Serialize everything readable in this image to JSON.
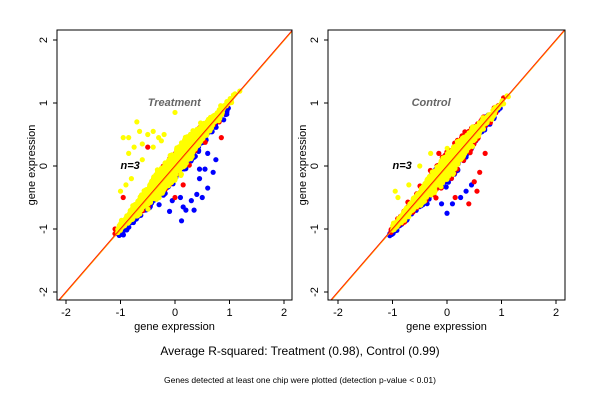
{
  "chart_data": [
    {
      "type": "scatter",
      "title": "Treatment",
      "annotation": "n=3",
      "xlabel": "gene expression",
      "ylabel": "gene expression",
      "xlim": [
        -2.15,
        2.15
      ],
      "ylim": [
        -2.15,
        2.15
      ],
      "xticks": [
        "-2",
        "-1",
        "0",
        "1",
        "2"
      ],
      "yticks": [
        "-2",
        "-1",
        "0",
        "1",
        "2"
      ],
      "reference_line": "y = x",
      "series": [
        {
          "name": "blue",
          "color": "#0000ff",
          "cloud": {
            "center": -0.05,
            "sd": 0.42,
            "min": -1.05,
            "max": 1.15,
            "offset": -0.08,
            "spread": 0.1,
            "n": 600
          },
          "outliers": [
            [
              0.45,
              -0.05
            ],
            [
              0.55,
              -0.05
            ],
            [
              0.45,
              -0.2
            ],
            [
              0.6,
              -0.35
            ],
            [
              0.1,
              -0.5
            ],
            [
              0.3,
              -0.55
            ],
            [
              0.4,
              -0.45
            ],
            [
              -0.05,
              -0.55
            ],
            [
              0.15,
              -0.65
            ],
            [
              0.2,
              -0.7
            ],
            [
              0.35,
              -0.7
            ],
            [
              0.5,
              -0.5
            ],
            [
              -0.1,
              -0.72
            ],
            [
              0.12,
              -0.87
            ],
            [
              0.7,
              -0.1
            ],
            [
              0.75,
              0.1
            ],
            [
              0.6,
              0.2
            ]
          ]
        },
        {
          "name": "red",
          "color": "#ff0000",
          "cloud": {
            "center": -0.1,
            "sd": 0.45,
            "min": -1.15,
            "max": 1.1,
            "offset": 0.0,
            "spread": 0.14,
            "n": 250
          },
          "outliers": [
            [
              -1.1,
              -1.0
            ],
            [
              -0.95,
              -0.5
            ],
            [
              0.15,
              -0.3
            ],
            [
              0.0,
              -0.5
            ],
            [
              0.85,
              0.45
            ],
            [
              -0.5,
              0.3
            ]
          ]
        },
        {
          "name": "yellow",
          "color": "#ffff00",
          "cloud": {
            "center": -0.15,
            "sd": 0.42,
            "min": -1.05,
            "max": 1.2,
            "offset": 0.03,
            "spread": 0.12,
            "n": 2500
          },
          "outliers": [
            [
              -0.7,
              0.7
            ],
            [
              -0.65,
              0.55
            ],
            [
              -0.95,
              0.45
            ],
            [
              -0.85,
              0.45
            ],
            [
              -0.5,
              0.5
            ],
            [
              -0.3,
              0.45
            ],
            [
              -0.25,
              0.4
            ],
            [
              -0.75,
              0.3
            ],
            [
              -0.85,
              0.2
            ],
            [
              -0.6,
              0.35
            ],
            [
              -0.4,
              0.3
            ],
            [
              0.0,
              0.85
            ],
            [
              -0.4,
              0.55
            ],
            [
              -0.2,
              0.5
            ],
            [
              -0.9,
              -0.3
            ],
            [
              -1.0,
              -0.4
            ],
            [
              -0.8,
              -0.2
            ],
            [
              -0.6,
              0.1
            ]
          ]
        }
      ]
    },
    {
      "type": "scatter",
      "title": "Control",
      "annotation": "n=3",
      "xlabel": "gene expression",
      "ylabel": "gene expression",
      "xlim": [
        -2.15,
        2.15
      ],
      "ylim": [
        -2.15,
        2.15
      ],
      "xticks": [
        "-2",
        "-1",
        "0",
        "1",
        "2"
      ],
      "yticks": [
        "-2",
        "-1",
        "0",
        "1",
        "2"
      ],
      "reference_line": "y = x",
      "series": [
        {
          "name": "blue",
          "color": "#0000ff",
          "cloud": {
            "center": -0.1,
            "sd": 0.42,
            "min": -1.05,
            "max": 1.1,
            "offset": -0.05,
            "spread": 0.12,
            "n": 500
          },
          "outliers": [
            [
              0.25,
              -0.5
            ],
            [
              0.35,
              -0.4
            ],
            [
              0.45,
              -0.3
            ],
            [
              -0.1,
              -0.6
            ],
            [
              0.0,
              -0.75
            ],
            [
              0.1,
              -0.6
            ]
          ]
        },
        {
          "name": "red",
          "color": "#ff0000",
          "cloud": {
            "center": -0.05,
            "sd": 0.45,
            "min": -1.05,
            "max": 1.1,
            "offset": 0.0,
            "spread": 0.14,
            "n": 500
          },
          "outliers": [
            [
              0.5,
              -0.25
            ],
            [
              0.55,
              -0.4
            ],
            [
              0.4,
              -0.6
            ],
            [
              0.6,
              -0.1
            ],
            [
              0.7,
              0.2
            ],
            [
              0.15,
              -0.5
            ],
            [
              0.35,
              0.5
            ],
            [
              -0.15,
              0.2
            ],
            [
              0.45,
              0.6
            ]
          ]
        },
        {
          "name": "yellow",
          "color": "#ffff00",
          "cloud": {
            "center": -0.15,
            "sd": 0.42,
            "min": -1.0,
            "max": 1.15,
            "offset": 0.0,
            "spread": 0.1,
            "n": 2300
          },
          "outliers": [
            [
              -0.9,
              -0.5
            ],
            [
              -0.95,
              -0.4
            ],
            [
              -0.7,
              -0.3
            ],
            [
              -0.5,
              0.0
            ],
            [
              -0.3,
              0.2
            ]
          ]
        }
      ]
    }
  ],
  "footer": {
    "summary": "Average R-squared: Treatment (0.98), Control (0.99)",
    "note": "Genes detected at least one chip were plotted (detection p-value < 0.01)"
  }
}
